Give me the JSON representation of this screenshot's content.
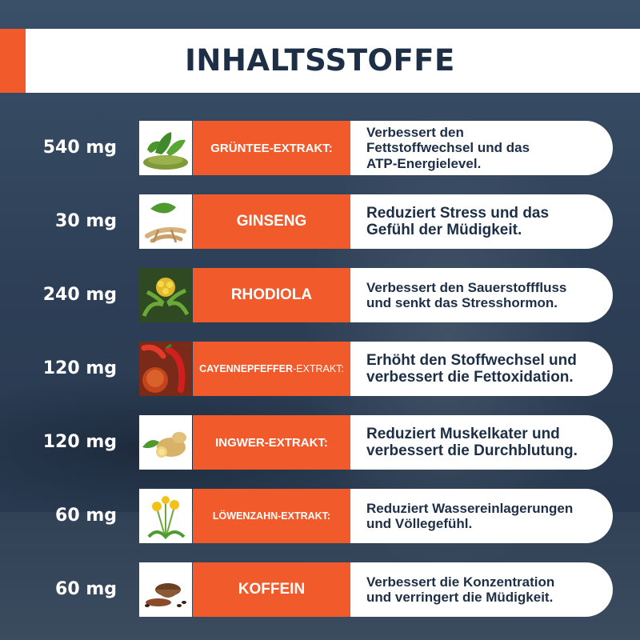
{
  "title": "INHALTSSTOFFE",
  "colors": {
    "accent": "#f15a2b",
    "navy": "#1d2f47",
    "background": "#2e4058"
  },
  "ingredients": [
    {
      "dose": "540 mg",
      "icon": "green-tea-icon",
      "name": "GRÜNTEE-EXTRAKT:",
      "desc_lines": [
        "Verbessert den",
        "Fettstoffwechsel und das",
        "ATP-Energielevel."
      ]
    },
    {
      "dose": "30 mg",
      "icon": "ginseng-icon",
      "name": "GINSENG",
      "desc_lines": [
        "Reduziert Stress und das",
        "Gefühl der Müdigkeit."
      ]
    },
    {
      "dose": "240 mg",
      "icon": "rhodiola-icon",
      "name": "RHODIOLA",
      "desc_lines": [
        "Verbessert den Sauerstofffluss",
        "und senkt das Stresshormon."
      ]
    },
    {
      "dose": "120 mg",
      "icon": "cayenne-pepper-icon",
      "name_bold": "CAYENNEPFEFFER",
      "name_thin": "-EXTRAKT:",
      "desc_lines": [
        "Erhöht den Stoffwechsel und",
        "verbessert die Fettoxidation."
      ]
    },
    {
      "dose": "120 mg",
      "icon": "ginger-icon",
      "name": "INGWER-EXTRAKT:",
      "desc_lines": [
        "Reduziert Muskelkater und",
        "verbessert die Durchblutung."
      ]
    },
    {
      "dose": "60 mg",
      "icon": "dandelion-icon",
      "name": "LÖWENZAHN-EXTRAKT:",
      "desc_lines": [
        "Reduziert Wassereinlagerungen",
        "und Völlegefühl."
      ]
    },
    {
      "dose": "60 mg",
      "icon": "coffee-icon",
      "name": "KOFFEIN",
      "desc_lines": [
        "Verbessert die Konzentration",
        "und verringert die Müdigkeit."
      ]
    }
  ]
}
